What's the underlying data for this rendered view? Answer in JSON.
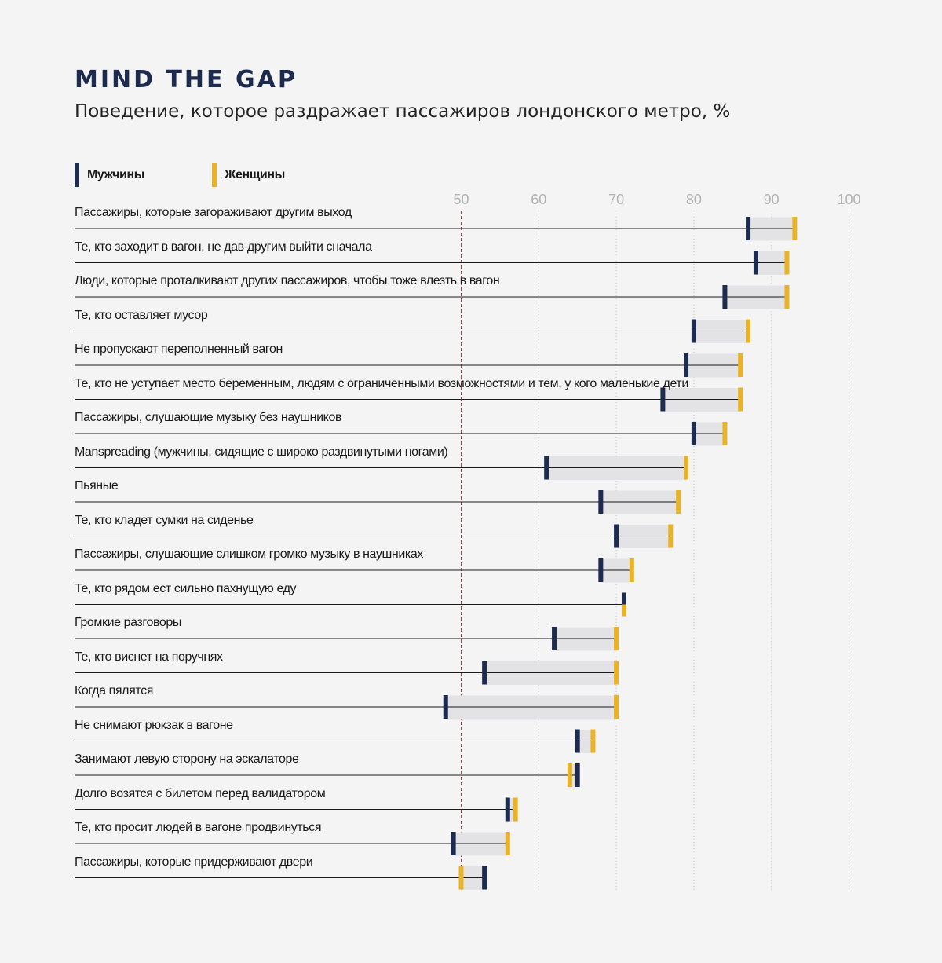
{
  "title": "MIND THE GAP",
  "subtitle": "Поведение, которое раздражает пассажиров лондонского метро, %",
  "colors": {
    "men": "#1d2b4f",
    "women": "#e8b326",
    "gap": "#e3e3e6",
    "ref": "#c8354a",
    "grid": "#bdbdbd",
    "tick": "#b3b3b3"
  },
  "legend": [
    {
      "name": "Мужчины",
      "color": "#1d2b4f"
    },
    {
      "name": "Женщины",
      "color": "#e8b326"
    }
  ],
  "chart_data": {
    "type": "dumbbell",
    "title": "MIND THE GAP",
    "subtitle": "Поведение, которое раздражает пассажиров лондонского метро, %",
    "xlim": [
      50,
      100
    ],
    "ticks": [
      50,
      60,
      70,
      80,
      90,
      100
    ],
    "reference_line": 50,
    "grid": "dotted vertical",
    "legend_position": "top-left",
    "series": [
      {
        "name": "Мужчины",
        "color": "#1d2b4f"
      },
      {
        "name": "Женщины",
        "color": "#e8b326"
      }
    ],
    "rows": [
      {
        "label": "Пассажиры, которые загораживают другим выход",
        "men": 87,
        "women": 93
      },
      {
        "label": "Те, кто заходит в вагон, не дав другим выйти сначала",
        "men": 88,
        "women": 92
      },
      {
        "label": "Люди, которые проталкивают других пассажиров, чтобы тоже влезть в вагон",
        "men": 84,
        "women": 92
      },
      {
        "label": "Те, кто оставляет мусор",
        "men": 80,
        "women": 87
      },
      {
        "label": "Не пропускают переполненный вагон",
        "men": 79,
        "women": 86
      },
      {
        "label": "Те, кто не уступает место беременным, людям с ограниченными возможностями и тем, у кого маленькие дети",
        "men": 76,
        "women": 86
      },
      {
        "label": "Пассажиры, слушающие музыку без наушников",
        "men": 80,
        "women": 84
      },
      {
        "label": "Manspreading (мужчины, сидящие с широко раздвинутыми ногами)",
        "men": 61,
        "women": 79
      },
      {
        "label": "Пьяные",
        "men": 68,
        "women": 78
      },
      {
        "label": "Те, кто кладет сумки на сиденье",
        "men": 70,
        "women": 77
      },
      {
        "label": "Пассажиры, слушающие слишком громко музыку в наушниках",
        "men": 68,
        "women": 72
      },
      {
        "label": "Те, кто рядом ест сильно пахнущую еду",
        "men": 71,
        "women": 71
      },
      {
        "label": "Громкие разговоры",
        "men": 62,
        "women": 70
      },
      {
        "label": "Те, кто виснет на поручнях",
        "men": 53,
        "women": 70
      },
      {
        "label": "Когда пялятся",
        "men": 48,
        "women": 70
      },
      {
        "label": "Не снимают рюкзак в вагоне",
        "men": 65,
        "women": 67
      },
      {
        "label": "Занимают левую сторону на эскалаторе",
        "men": 65,
        "women": 64
      },
      {
        "label": "Долго возятся с билетом перед валидатором",
        "men": 56,
        "women": 57
      },
      {
        "label": "Те, кто просит людей в вагоне продвинуться",
        "men": 49,
        "women": 56
      },
      {
        "label": "Пассажиры, которые придерживают двери",
        "men": 53,
        "women": 50
      }
    ]
  }
}
